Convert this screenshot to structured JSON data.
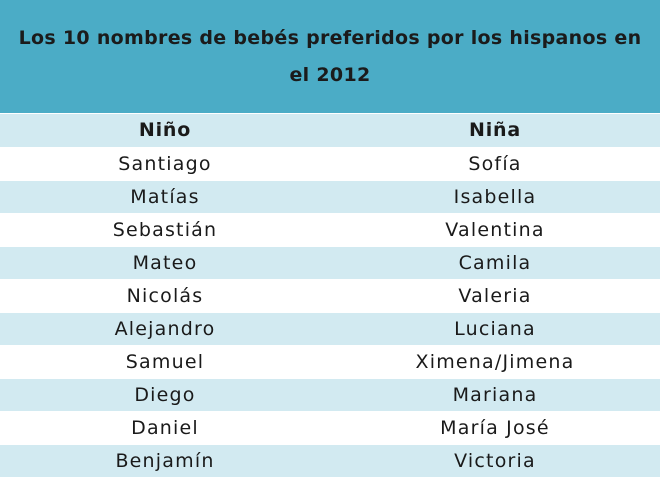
{
  "title": "Los 10 nombres de bebés preferidos por los hispanos en el 2012",
  "columns": {
    "boys": "Niño",
    "girls": "Niña"
  },
  "rows": [
    {
      "boy": "Santiago",
      "girl": "Sofía"
    },
    {
      "boy": "Matías",
      "girl": "Isabella"
    },
    {
      "boy": "Sebastián",
      "girl": "Valentina"
    },
    {
      "boy": "Mateo",
      "girl": "Camila"
    },
    {
      "boy": "Nicolás",
      "girl": "Valeria"
    },
    {
      "boy": "Alejandro",
      "girl": "Luciana"
    },
    {
      "boy": "Samuel",
      "girl": "Ximena/Jimena"
    },
    {
      "boy": "Diego",
      "girl": "Mariana"
    },
    {
      "boy": "Daniel",
      "girl": "María José"
    },
    {
      "boy": "Benjamín",
      "girl": "Victoria"
    }
  ],
  "colors": {
    "header_bg": "#4bacc6",
    "row_shaded_bg": "#d2eaf1",
    "row_plain_bg": "#ffffff"
  }
}
